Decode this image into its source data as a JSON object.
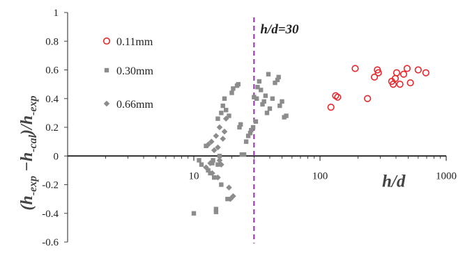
{
  "chart_data": {
    "type": "scatter",
    "xscale": "log",
    "xlim": [
      1,
      1000
    ],
    "ylim": [
      -0.6,
      1
    ],
    "grid": false,
    "legend_position": "top-left",
    "xlabel": "h/d",
    "ylabel_parts": [
      "(h",
      "-exp",
      " −h",
      "-cal",
      ")/h",
      "-exp"
    ],
    "xticks": [
      {
        "value": 10,
        "label": "10"
      },
      {
        "value": 100,
        "label": "100"
      },
      {
        "value": 1000,
        "label": "1000"
      }
    ],
    "yticks": [
      {
        "value": 1,
        "label": "1"
      },
      {
        "value": 0.8,
        "label": "0.8"
      },
      {
        "value": 0.6,
        "label": "0.6"
      },
      {
        "value": 0.4,
        "label": "0.4"
      },
      {
        "value": 0.2,
        "label": "0.2"
      },
      {
        "value": 0,
        "label": "0"
      },
      {
        "value": -0.2,
        "label": "-0.2"
      },
      {
        "value": -0.4,
        "label": "-0.4"
      },
      {
        "value": -0.6,
        "label": "-0.6"
      }
    ],
    "reference_line": {
      "x": 30,
      "label": "h/d=30",
      "color": "#9b3fae"
    },
    "series": [
      {
        "name": "0.11mm",
        "marker": "circle-open",
        "color": "#e8262a",
        "points": [
          [
            122,
            0.34
          ],
          [
            133,
            0.42
          ],
          [
            138,
            0.41
          ],
          [
            190,
            0.61
          ],
          [
            238,
            0.4
          ],
          [
            270,
            0.55
          ],
          [
            285,
            0.6
          ],
          [
            290,
            0.58
          ],
          [
            370,
            0.52
          ],
          [
            380,
            0.5
          ],
          [
            395,
            0.54
          ],
          [
            405,
            0.58
          ],
          [
            430,
            0.5
          ],
          [
            460,
            0.57
          ],
          [
            490,
            0.61
          ],
          [
            520,
            0.51
          ],
          [
            600,
            0.6
          ],
          [
            690,
            0.58
          ]
        ]
      },
      {
        "name": "0.30mm",
        "marker": "square",
        "color": "#8c8c8c",
        "points": [
          [
            10,
            -0.4
          ],
          [
            11,
            -0.03
          ],
          [
            11.5,
            -0.06
          ],
          [
            12.5,
            0.07
          ],
          [
            13,
            -0.1
          ],
          [
            13.5,
            -0.12
          ],
          [
            14,
            -0.05
          ],
          [
            14.2,
            -0.03
          ],
          [
            14.5,
            -0.15
          ],
          [
            15,
            -0.37
          ],
          [
            15,
            -0.39
          ],
          [
            15.5,
            -0.06
          ],
          [
            15.5,
            0.26
          ],
          [
            16,
            0.0
          ],
          [
            16.5,
            -0.2
          ],
          [
            16.5,
            0.3
          ],
          [
            17,
            0.35
          ],
          [
            17.5,
            0.4
          ],
          [
            18,
            0.32
          ],
          [
            18.5,
            -0.3
          ],
          [
            19,
            0.28
          ],
          [
            20,
            0.44
          ],
          [
            20.5,
            0.47
          ],
          [
            22,
            0.49
          ],
          [
            22.5,
            0.5
          ],
          [
            23,
            0.2
          ],
          [
            23.5,
            0.22
          ],
          [
            24,
            0.01
          ],
          [
            25,
            0.01
          ],
          [
            26,
            0.1
          ],
          [
            27,
            0.14
          ],
          [
            28,
            0.16
          ],
          [
            28.5,
            0.18
          ],
          [
            29.5,
            0.2
          ],
          [
            30,
            0.41
          ],
          [
            31,
            0.24
          ],
          [
            31.5,
            0.4
          ],
          [
            32,
            0.48
          ],
          [
            33,
            0.52
          ],
          [
            34,
            0.46
          ],
          [
            35,
            0.36
          ],
          [
            36,
            0.38
          ],
          [
            37,
            0.42
          ],
          [
            38,
            0.3
          ],
          [
            39,
            0.57
          ],
          [
            40,
            0.33
          ],
          [
            42,
            0.4
          ],
          [
            44,
            0.51
          ],
          [
            46,
            0.53
          ],
          [
            47,
            0.55
          ],
          [
            48,
            0.35
          ],
          [
            50,
            0.38
          ],
          [
            52,
            0.27
          ],
          [
            54,
            0.28
          ]
        ]
      },
      {
        "name": "0.66mm",
        "marker": "diamond",
        "color": "#8c8c8c",
        "points": [
          [
            12.5,
            -0.08
          ],
          [
            13,
            0.08
          ],
          [
            13.5,
            -0.05
          ],
          [
            13.8,
            0.1
          ],
          [
            14,
            -0.12
          ],
          [
            14.5,
            0.04
          ],
          [
            15,
            0.14
          ],
          [
            15.5,
            0.06
          ],
          [
            15.5,
            -0.15
          ],
          [
            16,
            -0.03
          ],
          [
            16,
            0.2
          ],
          [
            16.5,
            -0.06
          ],
          [
            17,
            0.12
          ],
          [
            17.5,
            0.17
          ],
          [
            18,
            0.26
          ],
          [
            19,
            -0.22
          ],
          [
            19.5,
            -0.3
          ],
          [
            20.5,
            -0.28
          ]
        ]
      }
    ]
  }
}
